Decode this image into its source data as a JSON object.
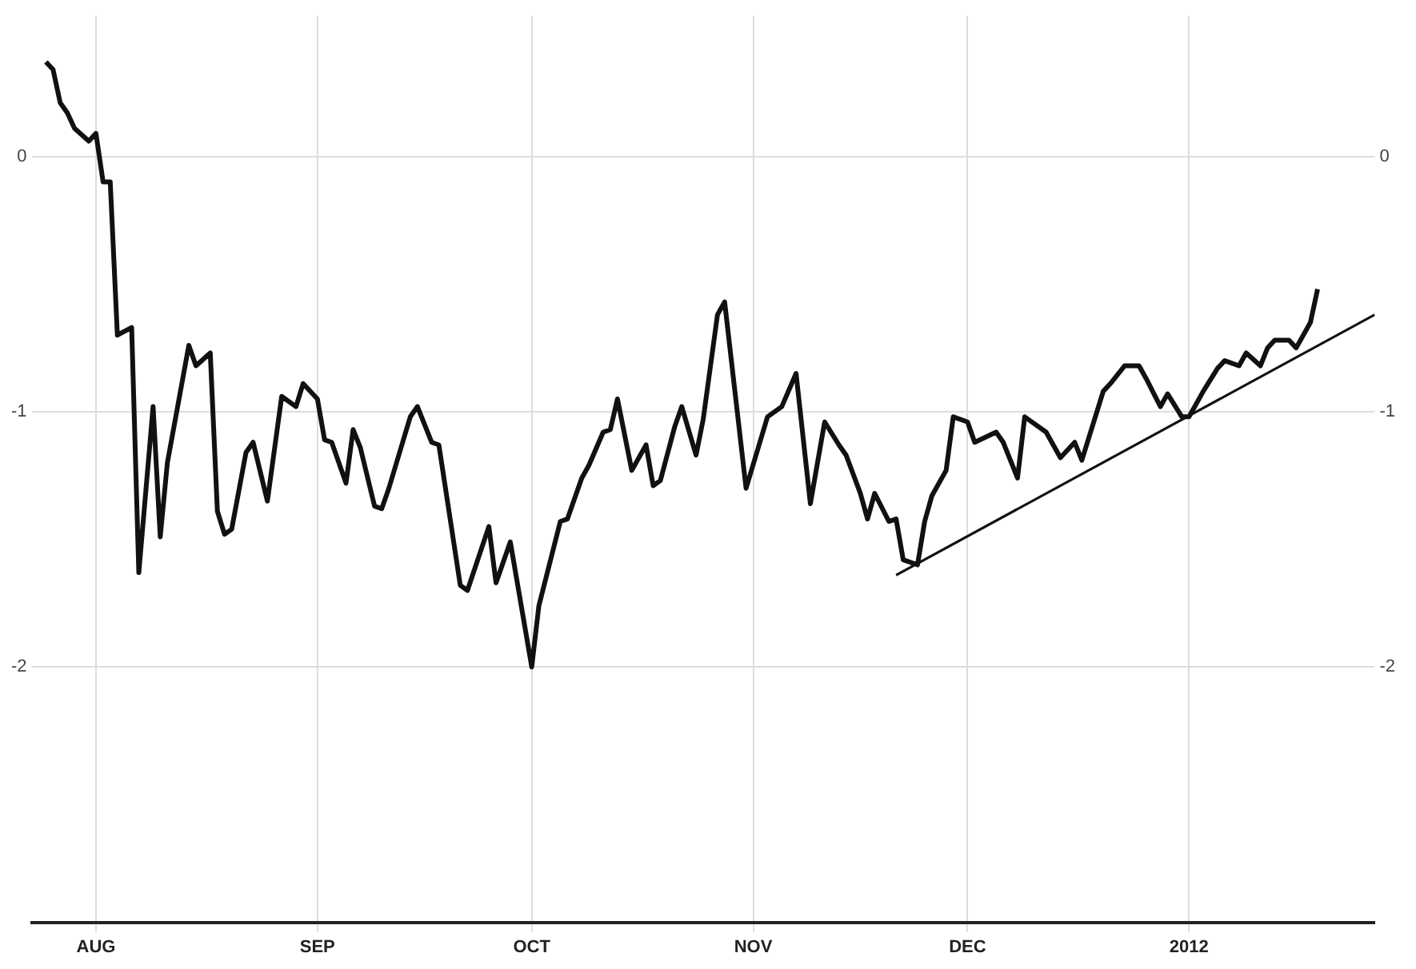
{
  "chart_data": {
    "type": "line",
    "xlim": [
      "2011-07-23",
      "2012-01-27"
    ],
    "xticks": [
      {
        "value": "2011-08-01",
        "label": "AUG"
      },
      {
        "value": "2011-09-01",
        "label": "SEP"
      },
      {
        "value": "2011-10-01",
        "label": "OCT"
      },
      {
        "value": "2011-11-01",
        "label": "NOV"
      },
      {
        "value": "2011-12-01",
        "label": "DEC"
      },
      {
        "value": "2012-01-01",
        "label": "2012"
      }
    ],
    "ylim": [
      -3,
      0.55
    ],
    "yticks": [
      0,
      -1,
      -2
    ],
    "y2lim": [
      -3,
      0.55
    ],
    "y2ticks": [
      0,
      -1,
      -2
    ],
    "grid": true,
    "legend": false,
    "marker": "none",
    "line_style": "solid",
    "series": [
      {
        "color": "#111111",
        "x": [
          "2011-07-25",
          "2011-07-26",
          "2011-07-27",
          "2011-07-28",
          "2011-07-29",
          "2011-07-31",
          "2011-08-01",
          "2011-08-02",
          "2011-08-03",
          "2011-08-04",
          "2011-08-06",
          "2011-08-07",
          "2011-08-09",
          "2011-08-10",
          "2011-08-11",
          "2011-08-14",
          "2011-08-15",
          "2011-08-17",
          "2011-08-18",
          "2011-08-19",
          "2011-08-20",
          "2011-08-22",
          "2011-08-23",
          "2011-08-25",
          "2011-08-27",
          "2011-08-29",
          "2011-08-30",
          "2011-09-01",
          "2011-09-02",
          "2011-09-03",
          "2011-09-05",
          "2011-09-06",
          "2011-09-07",
          "2011-09-09",
          "2011-09-10",
          "2011-09-11",
          "2011-09-14",
          "2011-09-15",
          "2011-09-17",
          "2011-09-18",
          "2011-09-21",
          "2011-09-22",
          "2011-09-25",
          "2011-09-26",
          "2011-09-28",
          "2011-10-01",
          "2011-10-02",
          "2011-10-05",
          "2011-10-06",
          "2011-10-08",
          "2011-10-09",
          "2011-10-11",
          "2011-10-12",
          "2011-10-13",
          "2011-10-15",
          "2011-10-17",
          "2011-10-18",
          "2011-10-19",
          "2011-10-21",
          "2011-10-22",
          "2011-10-24",
          "2011-10-25",
          "2011-10-27",
          "2011-10-28",
          "2011-10-31",
          "2011-11-03",
          "2011-11-05",
          "2011-11-07",
          "2011-11-09",
          "2011-11-11",
          "2011-11-13",
          "2011-11-14",
          "2011-11-16",
          "2011-11-17",
          "2011-11-18",
          "2011-11-20",
          "2011-11-21",
          "2011-11-22",
          "2011-11-24",
          "2011-11-25",
          "2011-11-26",
          "2011-11-28",
          "2011-11-29",
          "2011-12-01",
          "2011-12-02",
          "2011-12-05",
          "2011-12-06",
          "2011-12-08",
          "2011-12-09",
          "2011-12-12",
          "2011-12-14",
          "2011-12-16",
          "2011-12-17",
          "2011-12-19",
          "2011-12-20",
          "2011-12-21",
          "2011-12-23",
          "2011-12-25",
          "2011-12-26",
          "2011-12-28",
          "2011-12-29",
          "2011-12-31",
          "2012-01-01",
          "2012-01-03",
          "2012-01-05",
          "2012-01-06",
          "2012-01-08",
          "2012-01-09",
          "2012-01-11",
          "2012-01-12",
          "2012-01-13",
          "2012-01-15",
          "2012-01-16",
          "2012-01-18",
          "2012-01-19"
        ],
        "values": [
          0.37,
          0.34,
          0.21,
          0.17,
          0.11,
          0.06,
          0.09,
          -0.1,
          -0.1,
          -0.7,
          -0.67,
          -1.63,
          -0.98,
          -1.49,
          -1.2,
          -0.74,
          -0.82,
          -0.77,
          -1.39,
          -1.48,
          -1.46,
          -1.16,
          -1.12,
          -1.35,
          -0.94,
          -0.98,
          -0.89,
          -0.95,
          -1.11,
          -1.12,
          -1.28,
          -1.07,
          -1.14,
          -1.37,
          -1.38,
          -1.3,
          -1.02,
          -0.98,
          -1.12,
          -1.13,
          -1.68,
          -1.7,
          -1.45,
          -1.67,
          -1.51,
          -2.0,
          -1.76,
          -1.43,
          -1.42,
          -1.26,
          -1.21,
          -1.08,
          -1.07,
          -0.95,
          -1.23,
          -1.13,
          -1.29,
          -1.27,
          -1.06,
          -0.98,
          -1.17,
          -1.03,
          -0.62,
          -0.57,
          -1.3,
          -1.02,
          -0.98,
          -0.85,
          -1.36,
          -1.04,
          -1.13,
          -1.17,
          -1.32,
          -1.42,
          -1.32,
          -1.43,
          -1.42,
          -1.58,
          -1.6,
          -1.43,
          -1.33,
          -1.23,
          -1.02,
          -1.04,
          -1.12,
          -1.08,
          -1.12,
          -1.26,
          -1.02,
          -1.08,
          -1.18,
          -1.12,
          -1.19,
          -1.01,
          -0.92,
          -0.89,
          -0.82,
          -0.82,
          -0.87,
          -0.98,
          -0.93,
          -1.02,
          -1.02,
          -0.92,
          -0.83,
          -0.8,
          -0.82,
          -0.77,
          -0.82,
          -0.75,
          -0.72,
          -0.72,
          -0.75,
          -0.65,
          -0.52
        ]
      },
      {
        "type": "line",
        "color": "#111111",
        "x": [
          "2011-11-21",
          "2012-01-27"
        ],
        "values": [
          -1.64,
          -0.62
        ]
      }
    ]
  }
}
